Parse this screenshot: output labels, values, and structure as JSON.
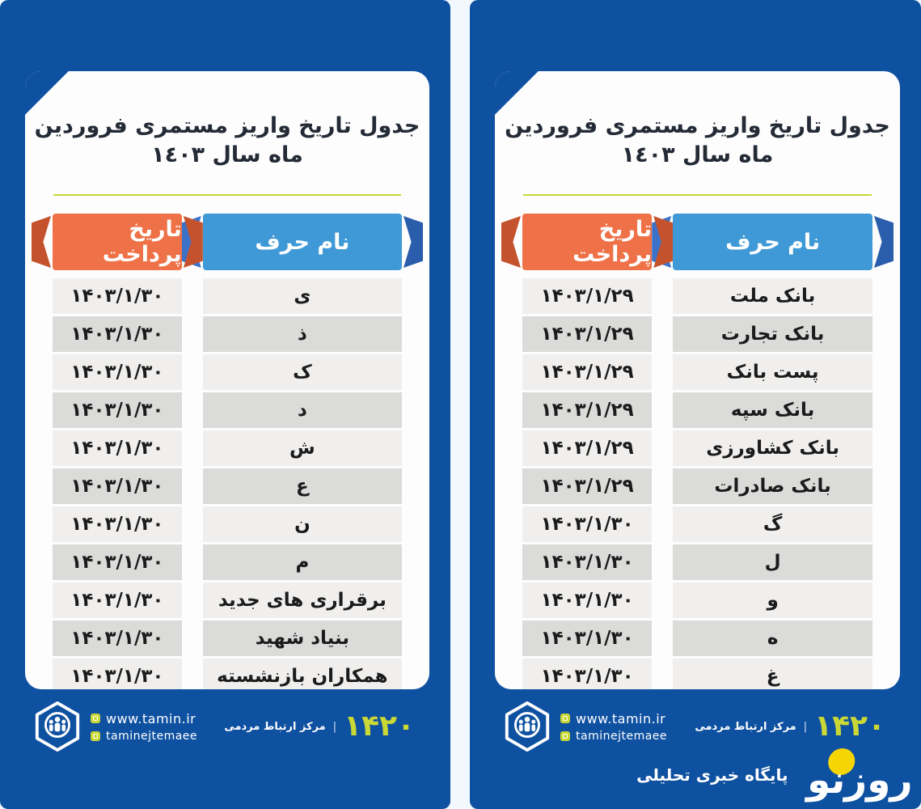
{
  "page": {
    "title": "جدول تاریخ واریز مستمری فروردین ماه سال ١٤٠٣",
    "columns": {
      "name_header": "نام حرف",
      "date_header": "تاریخ پرداخت"
    }
  },
  "left_panel": {
    "rows": [
      {
        "name": "ی",
        "date": "۱۴۰۳/۱/۳۰"
      },
      {
        "name": "ذ",
        "date": "۱۴۰۳/۱/۳۰"
      },
      {
        "name": "ک",
        "date": "۱۴۰۳/۱/۳۰"
      },
      {
        "name": "د",
        "date": "۱۴۰۳/۱/۳۰"
      },
      {
        "name": "ش",
        "date": "۱۴۰۳/۱/۳۰"
      },
      {
        "name": "ع",
        "date": "۱۴۰۳/۱/۳۰"
      },
      {
        "name": "ن",
        "date": "۱۴۰۳/۱/۳۰"
      },
      {
        "name": "م",
        "date": "۱۴۰۳/۱/۳۰"
      },
      {
        "name": "برقراری های جدید",
        "date": "۱۴۰۳/۱/۳۰"
      },
      {
        "name": "بنیاد شهید",
        "date": "۱۴۰۳/۱/۳۰"
      },
      {
        "name": "همکاران بازنشسته",
        "date": "۱۴۰۳/۱/۳۰"
      }
    ]
  },
  "right_panel": {
    "rows": [
      {
        "name": "بانک ملت",
        "date": "۱۴۰۳/۱/۲۹"
      },
      {
        "name": "بانک تجارت",
        "date": "۱۴۰۳/۱/۲۹"
      },
      {
        "name": "پست بانک",
        "date": "۱۴۰۳/۱/۲۹"
      },
      {
        "name": "بانک سپه",
        "date": "۱۴۰۳/۱/۲۹"
      },
      {
        "name": "بانک کشاورزی",
        "date": "۱۴۰۳/۱/۲۹"
      },
      {
        "name": "بانک صادرات",
        "date": "۱۴۰۳/۱/۲۹"
      },
      {
        "name": "گ",
        "date": "۱۴۰۳/۱/۳۰"
      },
      {
        "name": "ل",
        "date": "۱۴۰۳/۱/۳۰"
      },
      {
        "name": "و",
        "date": "۱۴۰۳/۱/۳۰"
      },
      {
        "name": "ه",
        "date": "۱۴۰۳/۱/۳۰"
      },
      {
        "name": "غ",
        "date": "۱۴۰۳/۱/۳۰"
      }
    ]
  },
  "footer": {
    "website": "www.tamin.ir",
    "social_handle": "taminejtemaee",
    "hotline_number": "۱۴۲۰",
    "hotline_separator": "|",
    "hotline_label": "مرکز ارتباط مردمی"
  },
  "branding": {
    "logo_text": "روزنو",
    "tagline": "پایگاه خبری تحلیلی"
  },
  "icons": {
    "org_logo": "tamin-social-security-hexagon-logo",
    "website_icon": "globe-icon",
    "social_icon": "instagram-icon",
    "news_logo_dot": "yellow-circle"
  },
  "colors": {
    "panel_blue": "#0f51a1",
    "header_orange": "#ee7147",
    "header_orange_dark": "#c4532d",
    "header_blue": "#3f99d6",
    "header_blue_dark": "#2a5dab",
    "header_blue_mid": "#3b72c8",
    "accent_yellow_green": "#c9d835",
    "row_light": "#f0efee",
    "row_dark": "#dbdbda",
    "logo_yellow": "#f5d503"
  }
}
